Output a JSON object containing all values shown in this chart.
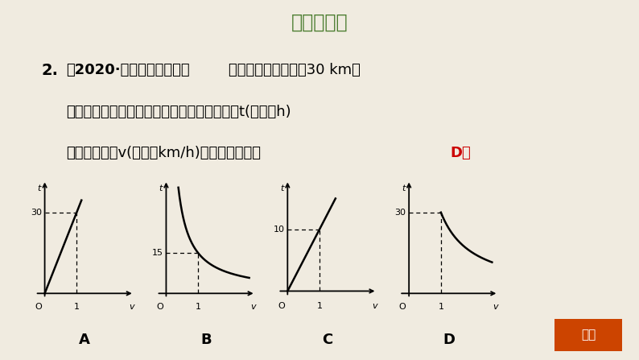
{
  "title": "基础巩固练",
  "title_color": "#4a7c2f",
  "bg_color": "#f0ebe0",
  "question_num": "2.",
  "question_line1a": "【2020·河北石家庄模拟】",
  "question_line1b": "已知甲、乙两地相距30 km，",
  "question_line2": "汽车从甲地匀速行驶到乙地，则汽车行驶时间t(单位：h)",
  "question_line3": "关于行驶速度v(单位：km/h)的函数图像为（",
  "answer": "D）",
  "answer_color": "#cc0000",
  "labels": [
    "A",
    "B",
    "C",
    "D"
  ],
  "return_btn_color": "#cc4400",
  "return_btn_text": "返回"
}
